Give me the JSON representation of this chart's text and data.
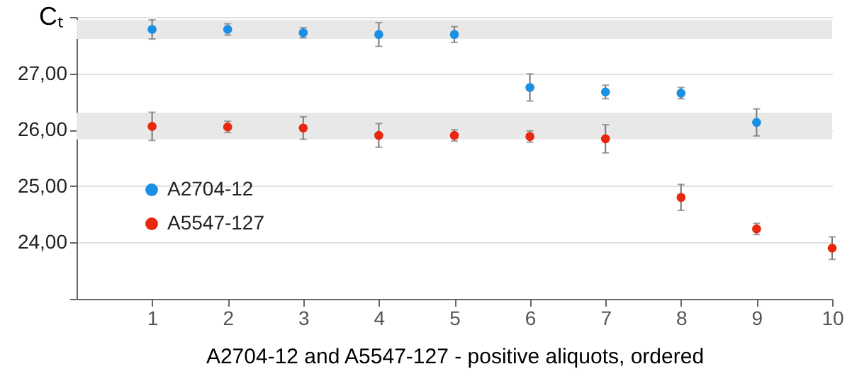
{
  "chart_data": {
    "type": "scatter",
    "ylabel": "Cₜ",
    "xlabel": "A2704-12 and A5547-127 - positive aliquots, ordered",
    "xlim": [
      0,
      10
    ],
    "xticks": [
      1,
      2,
      3,
      4,
      5,
      6,
      7,
      8,
      9,
      10
    ],
    "ylim": [
      23,
      28
    ],
    "yticks": [
      {
        "value": 23,
        "label": null
      },
      {
        "value": 24,
        "label": "24,00"
      },
      {
        "value": 25,
        "label": "25,00"
      },
      {
        "value": 26,
        "label": "26,00"
      },
      {
        "value": 27,
        "label": "27,00"
      },
      {
        "value": 28,
        "label": null
      }
    ],
    "grid": "y",
    "legend": "left",
    "bands": [
      {
        "axis": "y",
        "from": 27.61,
        "to": 27.95,
        "color": "#e8e8e8"
      },
      {
        "axis": "y",
        "from": 25.83,
        "to": 26.3,
        "color": "#e8e8e8"
      }
    ],
    "series": [
      {
        "name": "A2704-12",
        "color": "#1a8fe3",
        "marker": "circle",
        "x": [
          1,
          2,
          3,
          4,
          5,
          6,
          7,
          8,
          9
        ],
        "values": [
          27.78,
          27.78,
          27.72,
          27.69,
          27.69,
          26.75,
          26.67,
          26.65,
          26.13
        ],
        "errors": [
          0.17,
          0.1,
          0.09,
          0.21,
          0.14,
          0.24,
          0.12,
          0.1,
          0.24
        ]
      },
      {
        "name": "A5547-127",
        "color": "#e8280e",
        "marker": "circle",
        "x": [
          1,
          2,
          3,
          4,
          5,
          6,
          7,
          8,
          9,
          10
        ],
        "values": [
          26.06,
          26.05,
          26.03,
          25.9,
          25.9,
          25.88,
          25.84,
          24.8,
          24.24,
          23.9
        ],
        "errors": [
          0.25,
          0.1,
          0.2,
          0.21,
          0.1,
          0.1,
          0.25,
          0.23,
          0.1,
          0.2
        ]
      }
    ]
  }
}
